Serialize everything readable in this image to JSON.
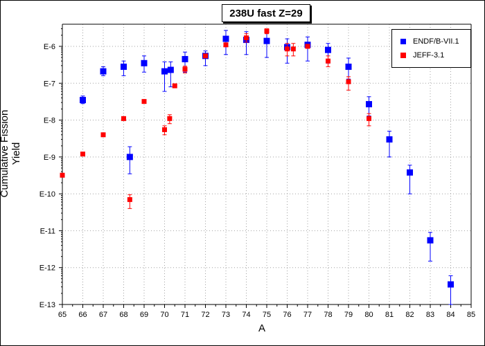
{
  "chart_data": {
    "type": "scatter",
    "title": "238U fast Z=29",
    "xlabel": "A",
    "ylabel": "Cumulative Fission Yield",
    "xlim": [
      65,
      85
    ],
    "ylim_log10": [
      -13.0,
      -5.4
    ],
    "y_scale": "log",
    "grid": true,
    "legend_position": "top-right",
    "x_ticks": [
      "65",
      "66",
      "67",
      "68",
      "69",
      "70",
      "71",
      "72",
      "73",
      "74",
      "75",
      "76",
      "77",
      "78",
      "79",
      "80",
      "81",
      "82",
      "83",
      "84",
      "85"
    ],
    "y_ticks": [
      {
        "label": "E-6",
        "exp": -6
      },
      {
        "label": "E-7",
        "exp": -7
      },
      {
        "label": "E-8",
        "exp": -8
      },
      {
        "label": "E-9",
        "exp": -9
      },
      {
        "label": "E-10",
        "exp": -10
      },
      {
        "label": "E-11",
        "exp": -11
      },
      {
        "label": "E-12",
        "exp": -12
      },
      {
        "label": "E-13",
        "exp": -13
      }
    ],
    "series": [
      {
        "name": "ENDF/B-VII.1",
        "color": "#0000ff",
        "points": [
          {
            "x": 66,
            "y": 3.5e-08,
            "lo": 2.8e-08,
            "hi": 4.5e-08
          },
          {
            "x": 67,
            "y": 2.1e-07,
            "lo": 1.6e-07,
            "hi": 2.8e-07
          },
          {
            "x": 68,
            "y": 2.8e-07,
            "lo": 1.6e-07,
            "hi": 4e-07
          },
          {
            "x": 68.3,
            "y": 1e-09,
            "lo": 3.5e-10,
            "hi": 1.9e-09
          },
          {
            "x": 69,
            "y": 3.5e-07,
            "lo": 2e-07,
            "hi": 5.5e-07
          },
          {
            "x": 70,
            "y": 2.1e-07,
            "lo": 6e-08,
            "hi": 3.8e-07
          },
          {
            "x": 70.3,
            "y": 2.3e-07,
            "lo": 8e-08,
            "hi": 3.8e-07
          },
          {
            "x": 71,
            "y": 4.5e-07,
            "lo": 2e-07,
            "hi": 7e-07
          },
          {
            "x": 72,
            "y": 5.5e-07,
            "lo": 3e-07,
            "hi": 7.5e-07
          },
          {
            "x": 73,
            "y": 1.6e-06,
            "lo": 6e-07,
            "hi": 2.7e-06
          },
          {
            "x": 74,
            "y": 1.5e-06,
            "lo": 6e-07,
            "hi": 2.5e-06
          },
          {
            "x": 75,
            "y": 1.4e-06,
            "lo": 5e-07,
            "hi": 2.3e-06
          },
          {
            "x": 76,
            "y": 9.5e-07,
            "lo": 3.5e-07,
            "hi": 1.6e-06
          },
          {
            "x": 77,
            "y": 1.1e-06,
            "lo": 4e-07,
            "hi": 1.8e-06
          },
          {
            "x": 78,
            "y": 8e-07,
            "lo": 3.5e-07,
            "hi": 1.2e-06
          },
          {
            "x": 79,
            "y": 2.8e-07,
            "lo": 1.3e-07,
            "hi": 4.8e-07
          },
          {
            "x": 80,
            "y": 2.7e-08,
            "lo": 1.3e-08,
            "hi": 4.3e-08
          },
          {
            "x": 81,
            "y": 3e-09,
            "lo": 1e-09,
            "hi": 5e-09
          },
          {
            "x": 82,
            "y": 3.8e-10,
            "lo": 1e-10,
            "hi": 6e-10
          },
          {
            "x": 83,
            "y": 5.5e-12,
            "lo": 1.5e-12,
            "hi": 9e-12
          },
          {
            "x": 84,
            "y": 3.5e-13,
            "lo": 1e-13,
            "hi": 6e-13
          }
        ]
      },
      {
        "name": "JEFF-3.1",
        "color": "#ff0000",
        "points": [
          {
            "x": 65,
            "y": 3.2e-10
          },
          {
            "x": 66,
            "y": 1.2e-09
          },
          {
            "x": 67,
            "y": 4e-09
          },
          {
            "x": 68,
            "y": 1.1e-08
          },
          {
            "x": 68.3,
            "y": 7e-11,
            "lo": 4e-11,
            "hi": 9.5e-11
          },
          {
            "x": 69,
            "y": 3.2e-08
          },
          {
            "x": 70,
            "y": 5.5e-09,
            "lo": 4e-09,
            "hi": 7e-09
          },
          {
            "x": 70.25,
            "y": 1.1e-08,
            "lo": 8e-09,
            "hi": 1.4e-08
          },
          {
            "x": 70.5,
            "y": 8.5e-08
          },
          {
            "x": 71,
            "y": 2.4e-07,
            "lo": 1.9e-07,
            "hi": 2.9e-07
          },
          {
            "x": 72,
            "y": 5.5e-07
          },
          {
            "x": 73,
            "y": 1.1e-06
          },
          {
            "x": 74,
            "y": 1.7e-06,
            "lo": 1.3e-06,
            "hi": 2.2e-06
          },
          {
            "x": 75,
            "y": 2.6e-06,
            "lo": 2.2e-06,
            "hi": 3e-06
          },
          {
            "x": 76,
            "y": 8.5e-07,
            "lo": 5.5e-07,
            "hi": 1.2e-06
          },
          {
            "x": 76.3,
            "y": 8.5e-07,
            "lo": 5.5e-07,
            "hi": 1.2e-06
          },
          {
            "x": 77,
            "y": 1e-06
          },
          {
            "x": 78,
            "y": 4e-07,
            "lo": 2.8e-07,
            "hi": 5.5e-07
          },
          {
            "x": 79,
            "y": 1.1e-07,
            "lo": 6.5e-08,
            "hi": 1.5e-07
          },
          {
            "x": 80,
            "y": 1.1e-08,
            "lo": 7e-09,
            "hi": 1.5e-08
          }
        ]
      }
    ]
  }
}
